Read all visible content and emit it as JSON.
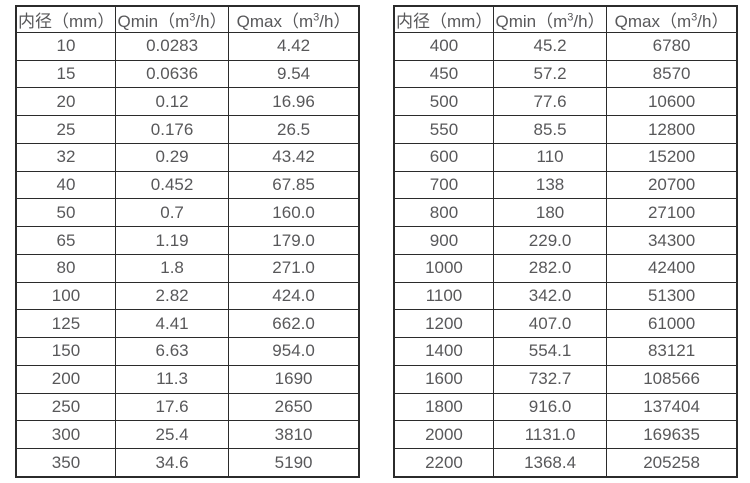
{
  "colors": {
    "background": "#ffffff",
    "border": "#2b2b2b",
    "text": "#58585a"
  },
  "column_keys": [
    "diameter",
    "qmin",
    "qmax"
  ],
  "tables": [
    {
      "name": "small-diameters",
      "headers": [
        {
          "pre": "内径（mm）",
          "sup": "",
          "post": ""
        },
        {
          "pre": "Qmin（m",
          "sup": "3",
          "post": "/h）"
        },
        {
          "pre": "Qmax（m",
          "sup": "3",
          "post": "/h）"
        }
      ],
      "rows": [
        [
          "10",
          "0.0283",
          "4.42"
        ],
        [
          "15",
          "0.0636",
          "9.54"
        ],
        [
          "20",
          "0.12",
          "16.96"
        ],
        [
          "25",
          "0.176",
          "26.5"
        ],
        [
          "32",
          "0.29",
          "43.42"
        ],
        [
          "40",
          "0.452",
          "67.85"
        ],
        [
          "50",
          "0.7",
          "160.0"
        ],
        [
          "65",
          "1.19",
          "179.0"
        ],
        [
          "80",
          "1.8",
          "271.0"
        ],
        [
          "100",
          "2.82",
          "424.0"
        ],
        [
          "125",
          "4.41",
          "662.0"
        ],
        [
          "150",
          "6.63",
          "954.0"
        ],
        [
          "200",
          "11.3",
          "1690"
        ],
        [
          "250",
          "17.6",
          "2650"
        ],
        [
          "300",
          "25.4",
          "3810"
        ],
        [
          "350",
          "34.6",
          "5190"
        ]
      ]
    },
    {
      "name": "large-diameters",
      "headers": [
        {
          "pre": "内径（mm）",
          "sup": "",
          "post": ""
        },
        {
          "pre": "Qmin（m",
          "sup": "3",
          "post": "/h）"
        },
        {
          "pre": "Qmax（m",
          "sup": "3",
          "post": "/h）"
        }
      ],
      "rows": [
        [
          "400",
          "45.2",
          "6780"
        ],
        [
          "450",
          "57.2",
          "8570"
        ],
        [
          "500",
          "77.6",
          "10600"
        ],
        [
          "550",
          "85.5",
          "12800"
        ],
        [
          "600",
          "110",
          "15200"
        ],
        [
          "700",
          "138",
          "20700"
        ],
        [
          "800",
          "180",
          "27100"
        ],
        [
          "900",
          "229.0",
          "34300"
        ],
        [
          "1000",
          "282.0",
          "42400"
        ],
        [
          "1100",
          "342.0",
          "51300"
        ],
        [
          "1200",
          "407.0",
          "61000"
        ],
        [
          "1400",
          "554.1",
          "83121"
        ],
        [
          "1600",
          "732.7",
          "108566"
        ],
        [
          "1800",
          "916.0",
          "137404"
        ],
        [
          "2000",
          "1131.0",
          "169635"
        ],
        [
          "2200",
          "1368.4",
          "205258"
        ]
      ]
    }
  ]
}
